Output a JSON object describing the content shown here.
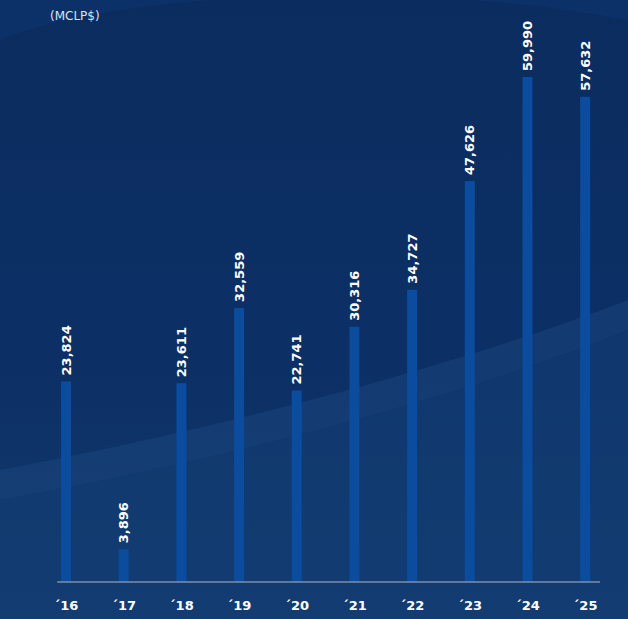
{
  "chart_data": {
    "type": "bar",
    "ylabel": "(MCLP$)",
    "categories": [
      "´16",
      "´17",
      "´18",
      "´19",
      "´20",
      "´21",
      "´22",
      "´23",
      "´24",
      "´25"
    ],
    "values": [
      23824,
      3896,
      23611,
      32559,
      22741,
      30316,
      34727,
      47626,
      59990,
      57632
    ],
    "value_labels": [
      "23,824",
      "3,896",
      "23,611",
      "32,559",
      "22,741",
      "30,316",
      "34,727",
      "47,626",
      "59,990",
      "57,632"
    ],
    "color": "#0b4c9e",
    "ylim": [
      0,
      60000
    ],
    "data_labels": true,
    "tick_labels": "x",
    "grid": false
  }
}
